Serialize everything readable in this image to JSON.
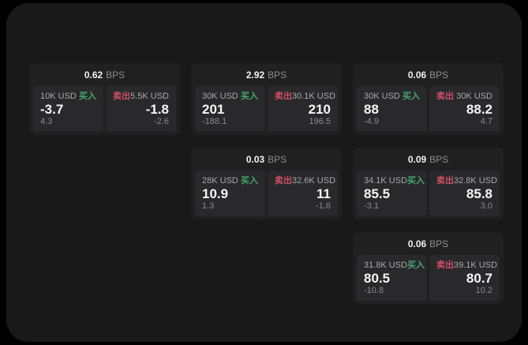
{
  "app": {
    "background": "#000000",
    "surface": "#19191a",
    "card_bg": "#202021",
    "panel_bg": "#29292b"
  },
  "labels": {
    "bps_unit": "BPS",
    "buy": "买入",
    "sell": "卖出"
  },
  "colors": {
    "buy": "#46a56d",
    "sell": "#cf4f66",
    "price_text": "#f5f5f5",
    "muted_text": "#8a8a8a"
  },
  "cards": [
    {
      "bps": "0.62",
      "buy": {
        "size": "10K USD",
        "price": "-3.7",
        "change": "4.3"
      },
      "sell": {
        "size": "5.5K USD",
        "price": "-1.8",
        "change": "-2.6"
      }
    },
    {
      "bps": "2.92",
      "buy": {
        "size": "30K USD",
        "price": "201",
        "change": "-188.1"
      },
      "sell": {
        "size": "30.1K USD",
        "price": "210",
        "change": "196.5"
      }
    },
    {
      "bps": "0.06",
      "buy": {
        "size": "30K USD",
        "price": "88",
        "change": "-4.9"
      },
      "sell": {
        "size": "30K USD",
        "price": "88.2",
        "change": "4.7"
      }
    },
    {
      "bps": "0.03",
      "buy": {
        "size": "28K USD",
        "price": "10.9",
        "change": "1.3"
      },
      "sell": {
        "size": "32.6K USD",
        "price": "11",
        "change": "-1.8"
      }
    },
    {
      "bps": "0.09",
      "buy": {
        "size": "34.1K USD",
        "price": "85.5",
        "change": "-3.1"
      },
      "sell": {
        "size": "32.8K USD",
        "price": "85.8",
        "change": "3.0"
      }
    },
    {
      "bps": "0.06",
      "buy": {
        "size": "31.8K USD",
        "price": "80.5",
        "change": "-10.8"
      },
      "sell": {
        "size": "39.1K USD",
        "price": "80.7",
        "change": "10.2"
      }
    }
  ]
}
